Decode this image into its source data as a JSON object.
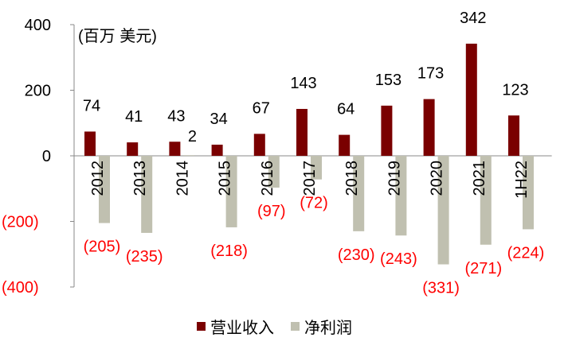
{
  "chart_data": {
    "type": "bar",
    "unit_label": "(百万 美元)",
    "categories": [
      "2012",
      "2013",
      "2014",
      "2015",
      "2016",
      "2017",
      "2018",
      "2019",
      "2020",
      "2021",
      "1H22"
    ],
    "series": [
      {
        "name": "营业收入",
        "color": "#7a0000",
        "values": [
          74,
          41,
          43,
          34,
          67,
          143,
          64,
          153,
          173,
          342,
          123
        ],
        "labels": [
          "74",
          "41",
          "43",
          "34",
          "67",
          "143",
          "64",
          "153",
          "173",
          "342",
          "123"
        ]
      },
      {
        "name": "净利润",
        "color": "#c0c0b0",
        "values": [
          -205,
          -235,
          2,
          -218,
          -97,
          -72,
          -230,
          -243,
          -331,
          -271,
          -224
        ],
        "labels": [
          "(205)",
          "(235)",
          "2",
          "(218)",
          "(97)",
          "(72)",
          "(230)",
          "(243)",
          "(331)",
          "(271)",
          "(224)"
        ]
      }
    ],
    "y_ticks": [
      400,
      200,
      0,
      -200,
      -400
    ],
    "y_tick_labels": [
      "400",
      "200",
      "0",
      "(200)",
      "(400)"
    ],
    "ylim": [
      -400,
      400
    ],
    "legend_position": "bottom",
    "grid": false,
    "positive_label_color": "#000000",
    "negative_label_color": "#ff0000"
  }
}
